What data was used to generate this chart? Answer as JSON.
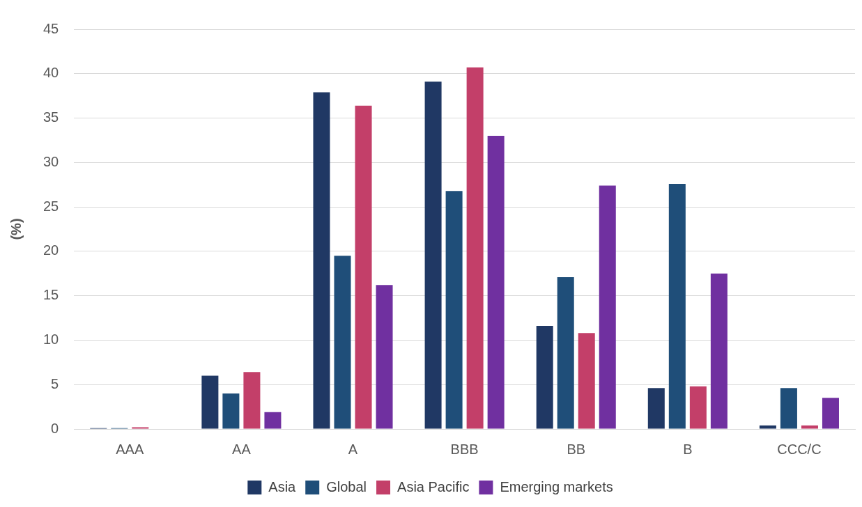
{
  "chart_data": {
    "type": "bar",
    "ylabel": "(%)",
    "categories": [
      "AAA",
      "AA",
      "A",
      "BBB",
      "BB",
      "B",
      "CCC/C"
    ],
    "series": [
      {
        "name": "Asia",
        "color": "#203864",
        "values": [
          0.1,
          6.0,
          37.9,
          39.1,
          11.6,
          4.6,
          0.4
        ]
      },
      {
        "name": "Global",
        "color": "#1f4e79",
        "values": [
          0.1,
          4.0,
          19.5,
          26.8,
          17.1,
          27.6,
          4.6
        ]
      },
      {
        "name": "Asia Pacific",
        "color": "#c33f69",
        "values": [
          0.2,
          6.4,
          36.4,
          40.7,
          10.8,
          4.8,
          0.4
        ]
      },
      {
        "name": "Emerging markets",
        "color": "#7030a0",
        "values": [
          0,
          1.9,
          16.2,
          33.0,
          27.4,
          17.5,
          3.5
        ]
      }
    ],
    "ylim": [
      0,
      45
    ],
    "yticks": [
      0,
      5,
      10,
      15,
      20,
      25,
      30,
      35,
      40,
      45
    ],
    "grid": "y",
    "legend": "bottom"
  }
}
